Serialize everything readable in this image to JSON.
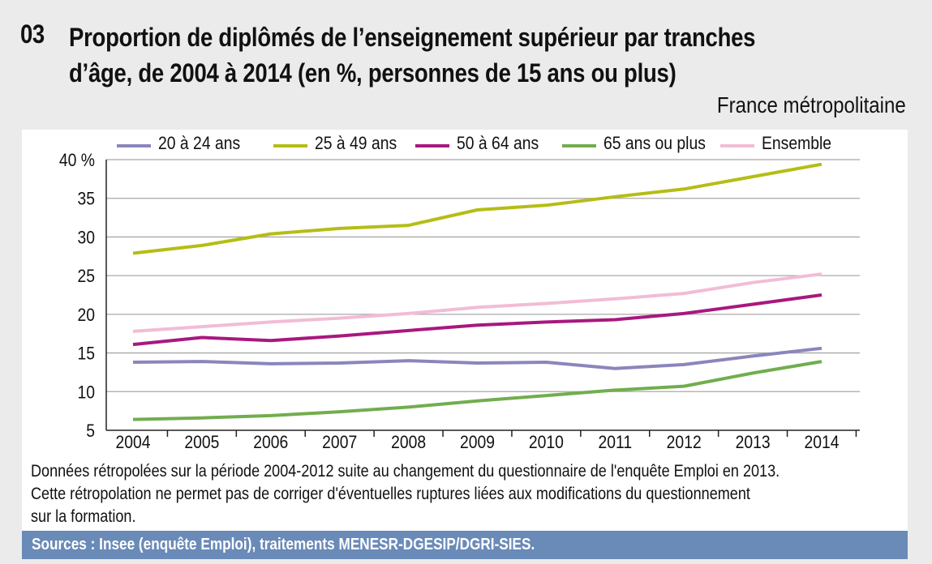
{
  "figure_number": "03",
  "title_line1": "Proportion de diplômés de l’enseignement supérieur par tranches",
  "title_line2": "d’âge, de 2004 à 2014 (en %, personnes de 15 ans ou plus)",
  "subtitle": "France métropolitaine",
  "note_lines": [
    "Données rétropolées sur la période 2004-2012 suite au changement du questionnaire de l'enquête Emploi en 2013.",
    "Cette rétropolation ne permet pas de corriger d'éventuelles ruptures liées aux modifications du questionnement",
    "sur la formation."
  ],
  "sources": "Sources : Insee (enquête Emploi), traitements MENESR-DGESIP/DGRI-SIES.",
  "chart_data": {
    "type": "line",
    "title": "Proportion de diplômés de l’enseignement supérieur par tranches d’âge, de 2004 à 2014 (en %, personnes de 15 ans ou plus)",
    "xlabel": "",
    "ylabel": "",
    "x": [
      "2004",
      "2005",
      "2006",
      "2007",
      "2008",
      "2009",
      "2010",
      "2011",
      "2012",
      "2013",
      "2014"
    ],
    "ylim": [
      5,
      40
    ],
    "yticks": [
      5,
      10,
      15,
      20,
      25,
      30,
      35,
      40
    ],
    "ytick_labels": [
      "5",
      "10",
      "15",
      "20",
      "25",
      "30",
      "35",
      "40 %"
    ],
    "grid": true,
    "legend_position": "top",
    "series": [
      {
        "name": "20 à 24 ans",
        "color": "#8a86bc",
        "values": [
          13.8,
          13.9,
          13.6,
          13.7,
          14.0,
          13.7,
          13.8,
          13.0,
          13.5,
          14.6,
          15.6
        ]
      },
      {
        "name": "25 à 49 ans",
        "color": "#b5bd16",
        "values": [
          27.9,
          28.9,
          30.4,
          31.1,
          31.5,
          33.5,
          34.1,
          35.2,
          36.2,
          37.8,
          39.4
        ]
      },
      {
        "name": "50 à 64 ans",
        "color": "#a8187f",
        "values": [
          16.1,
          17.0,
          16.6,
          17.2,
          17.9,
          18.6,
          19.0,
          19.3,
          20.1,
          21.3,
          22.5
        ]
      },
      {
        "name": "65 ans ou plus",
        "color": "#72ad4e",
        "values": [
          6.4,
          6.6,
          6.9,
          7.4,
          8.0,
          8.8,
          9.5,
          10.2,
          10.7,
          12.4,
          13.9
        ]
      },
      {
        "name": "Ensemble",
        "color": "#f2bcd5",
        "values": [
          17.8,
          18.4,
          19.0,
          19.5,
          20.1,
          20.9,
          21.4,
          22.0,
          22.7,
          24.1,
          25.2
        ]
      }
    ]
  }
}
